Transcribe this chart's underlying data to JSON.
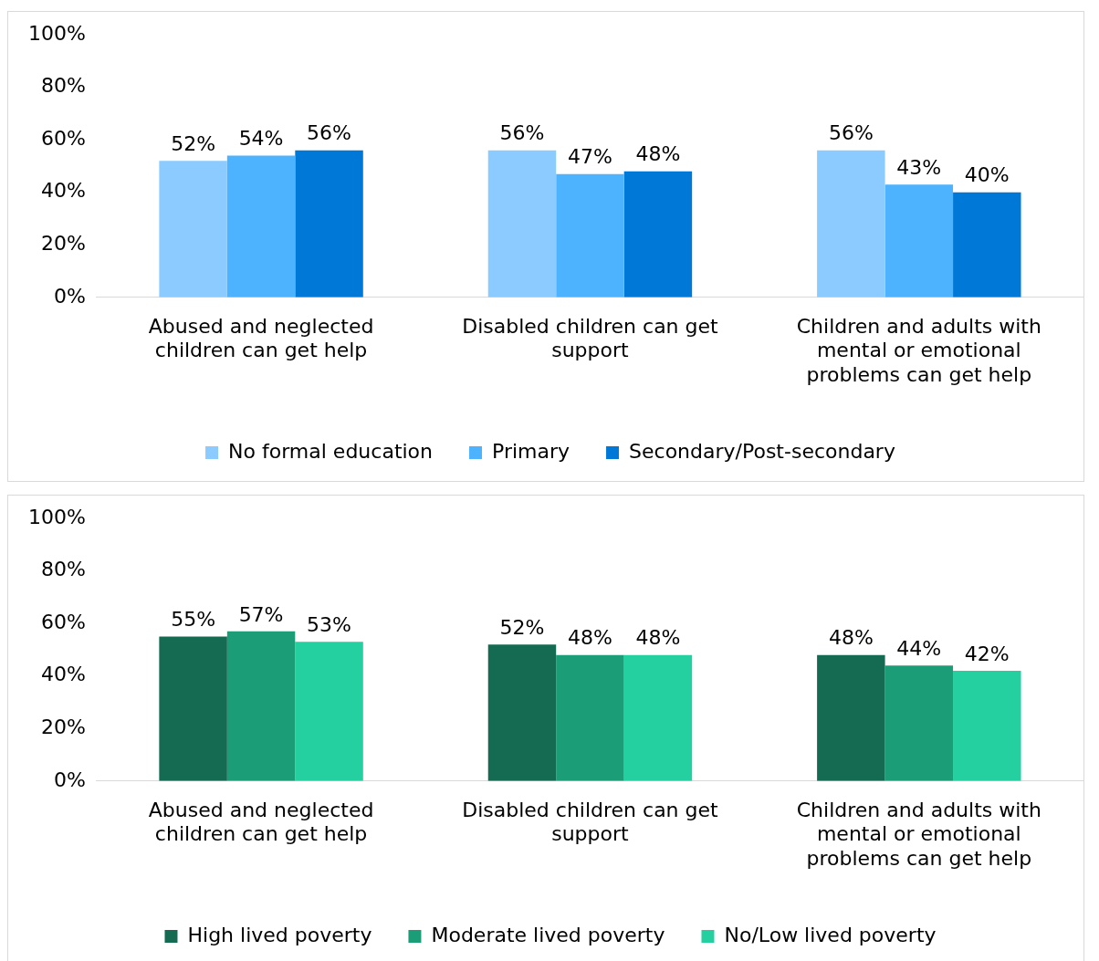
{
  "chart_data": [
    {
      "type": "bar",
      "categories": [
        "Abused and neglected children can get help",
        "Disabled children can get support",
        "Children and adults with mental or emotional problems can get help"
      ],
      "ylim": [
        0,
        100
      ],
      "yticks": [
        {
          "value": 0,
          "label": "0%"
        },
        {
          "value": 20,
          "label": "20%"
        },
        {
          "value": 40,
          "label": "40%"
        },
        {
          "value": 60,
          "label": "60%"
        },
        {
          "value": 80,
          "label": "80%"
        },
        {
          "value": 100,
          "label": "100%"
        }
      ],
      "grid": false,
      "legend": "bottom",
      "series": [
        {
          "name": "No formal education",
          "color": "#8ccbff",
          "values": [
            52,
            56,
            56
          ],
          "value_labels": [
            "52%",
            "56%",
            "56%"
          ]
        },
        {
          "name": "Primary",
          "color": "#4db3ff",
          "values": [
            54,
            47,
            43
          ],
          "value_labels": [
            "54%",
            "47%",
            "43%"
          ]
        },
        {
          "name": "Secondary/Post-secondary",
          "color": "#0078d7",
          "values": [
            56,
            48,
            40
          ],
          "value_labels": [
            "56%",
            "48%",
            "40%"
          ]
        }
      ]
    },
    {
      "type": "bar",
      "categories": [
        "Abused and neglected children can get help",
        "Disabled children can get support",
        "Children and adults with mental or emotional problems can get help"
      ],
      "ylim": [
        0,
        100
      ],
      "yticks": [
        {
          "value": 0,
          "label": "0%"
        },
        {
          "value": 20,
          "label": "20%"
        },
        {
          "value": 40,
          "label": "40%"
        },
        {
          "value": 60,
          "label": "60%"
        },
        {
          "value": 80,
          "label": "80%"
        },
        {
          "value": 100,
          "label": "100%"
        }
      ],
      "grid": false,
      "legend": "bottom",
      "series": [
        {
          "name": "High lived poverty",
          "color": "#146b52",
          "values": [
            55,
            52,
            48
          ],
          "value_labels": [
            "55%",
            "52%",
            "48%"
          ]
        },
        {
          "name": "Moderate lived poverty",
          "color": "#1b9e78",
          "values": [
            57,
            48,
            44
          ],
          "value_labels": [
            "57%",
            "48%",
            "44%"
          ]
        },
        {
          "name": "No/Low lived poverty",
          "color": "#24d0a0",
          "values": [
            53,
            48,
            42
          ],
          "value_labels": [
            "53%",
            "48%",
            "42%"
          ]
        }
      ]
    }
  ]
}
